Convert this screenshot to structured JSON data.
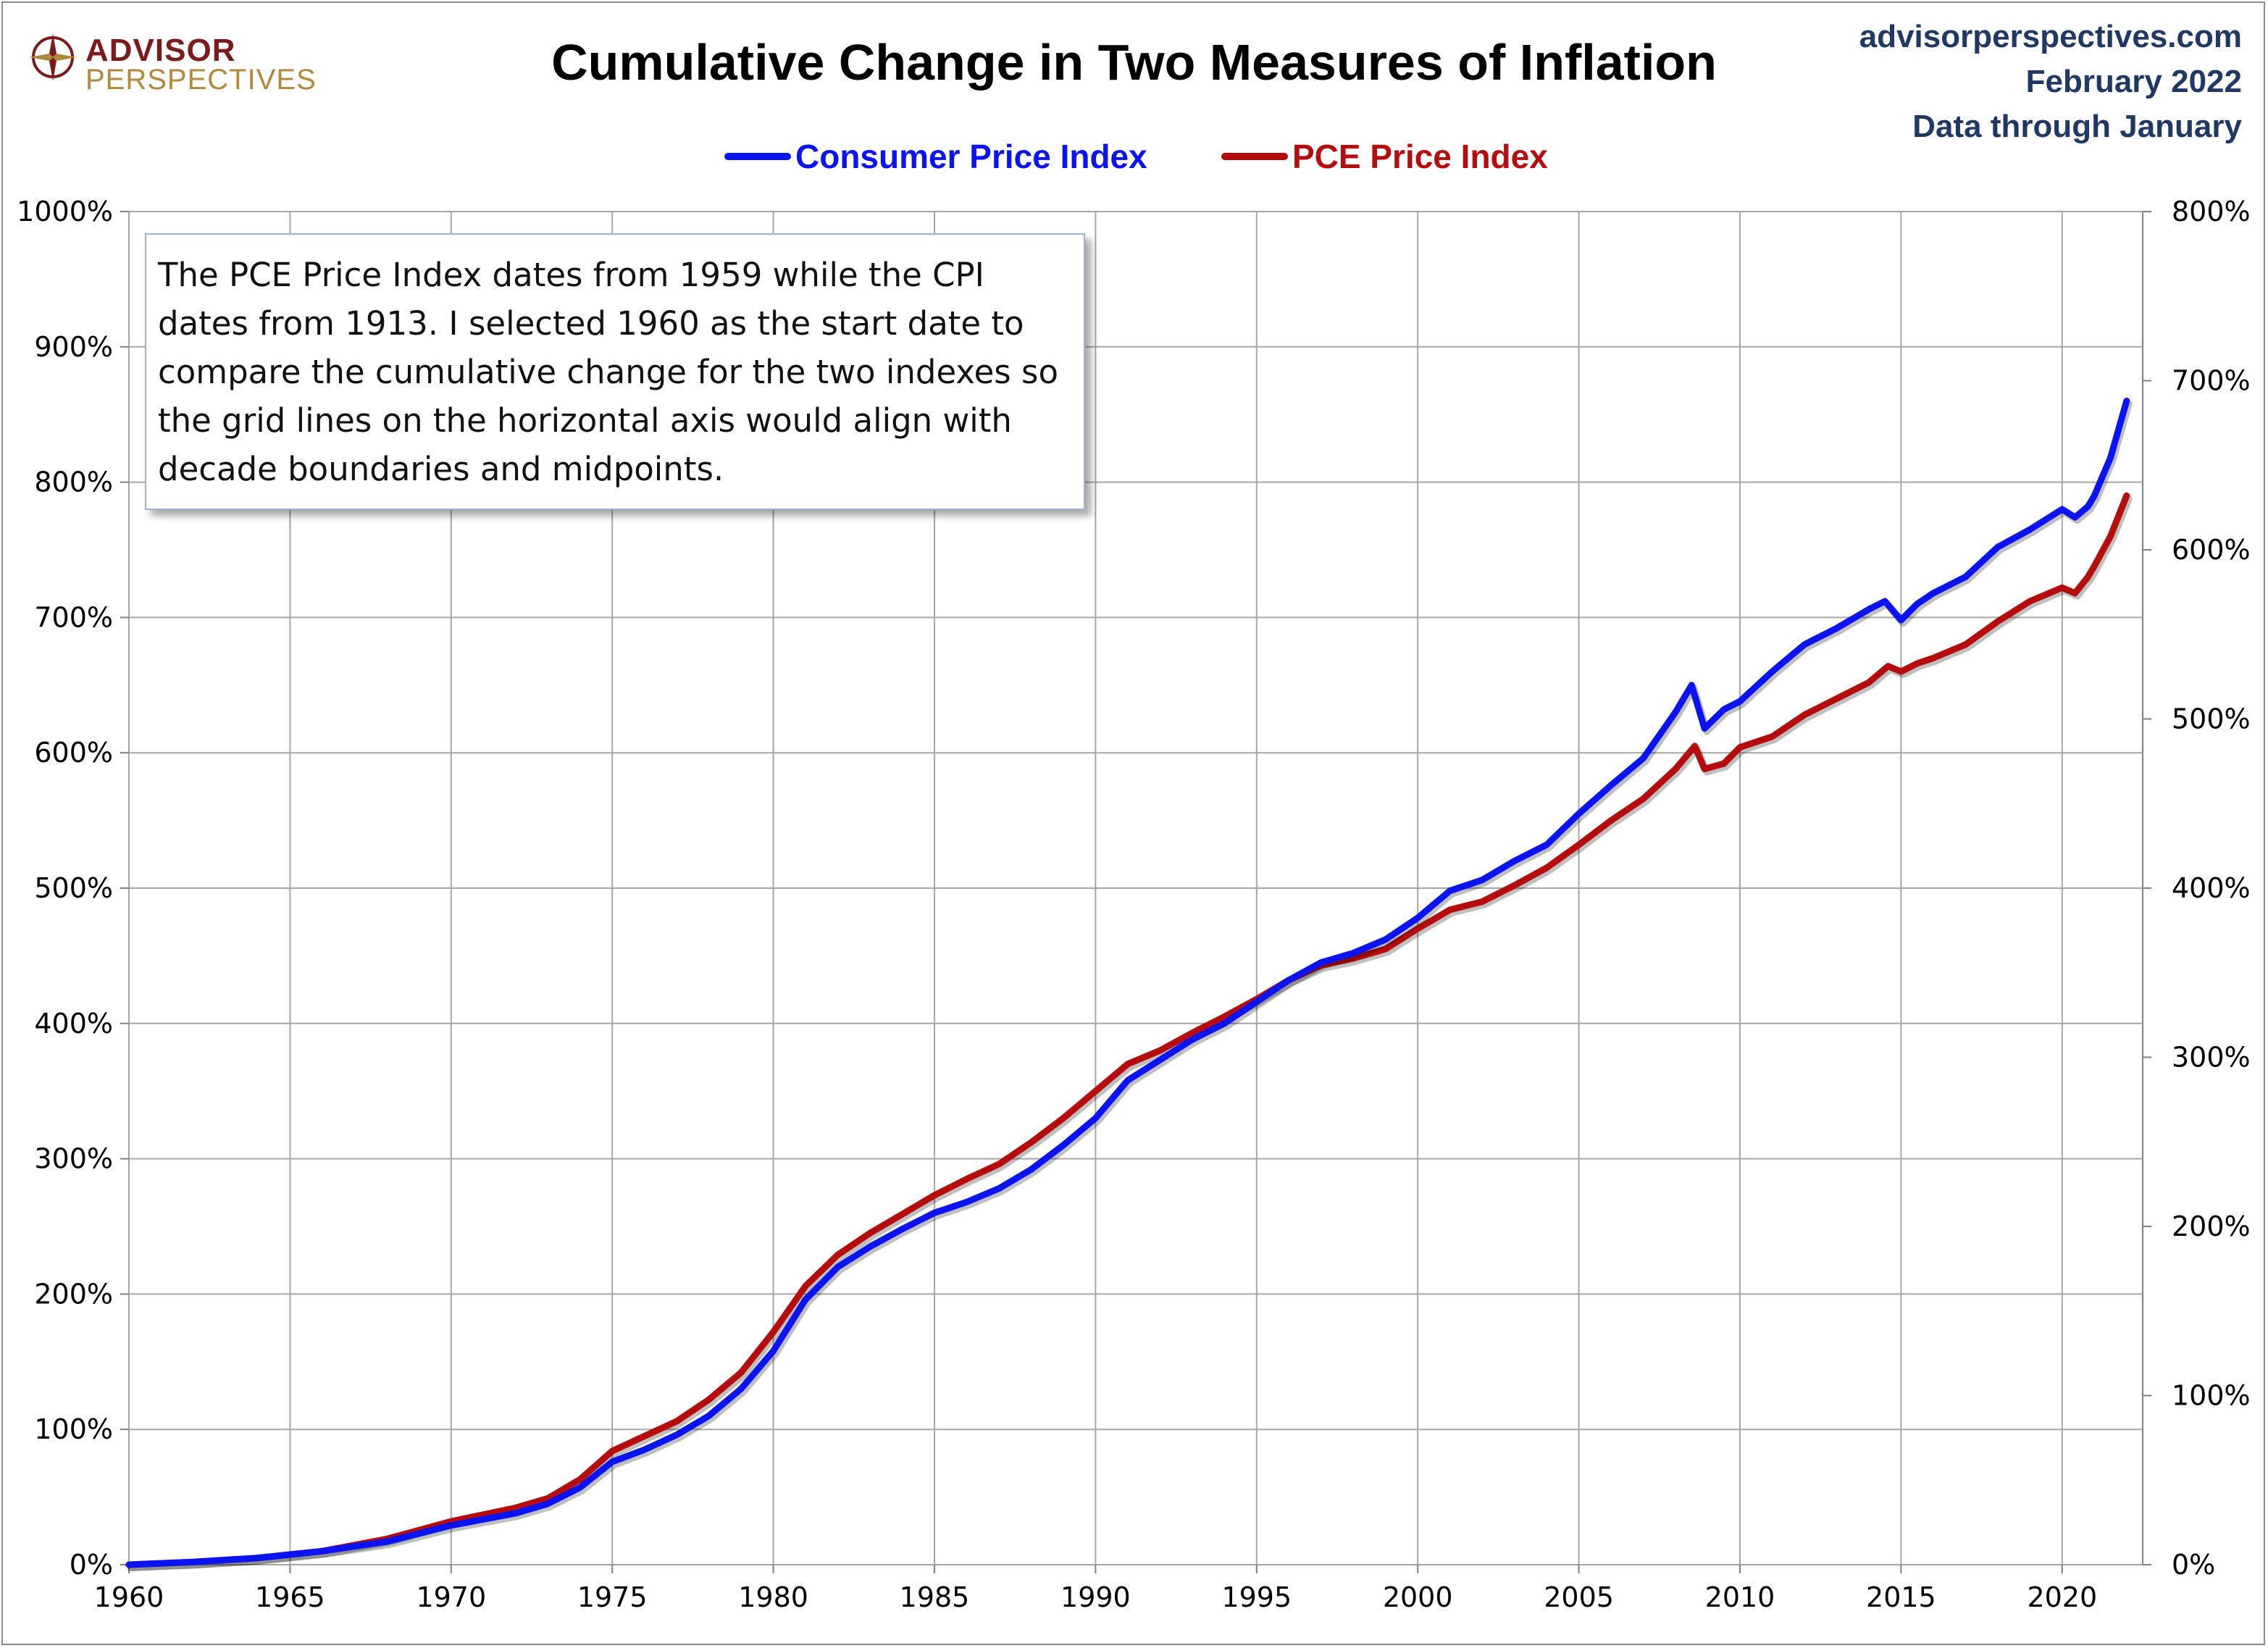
{
  "header": {
    "logo_line1": "ADVISOR",
    "logo_line2": "PERSPECTIVES",
    "source_site": "advisorperspectives.com",
    "source_date": "February 2022",
    "source_note": "Data through January"
  },
  "note": {
    "text": "The PCE Price Index dates from 1959 while the CPI dates from 1913. I selected 1960 as the start date to compare the cumulative change for the two indexes so the grid lines on the horizontal axis would align with decade boundaries and midpoints."
  },
  "colors": {
    "cpi": "#0a14f0",
    "pce": "#b50d0d",
    "grid": "#a6a6a6",
    "axis": "#7f7f7f",
    "source_text": "#1f3864"
  },
  "chart_data": {
    "type": "line",
    "title": "Cumulative Change in Two Measures of Inflation",
    "xlabel": "",
    "ylabel": "",
    "xlim": [
      1960,
      2022.5
    ],
    "ylim_left": [
      0,
      1000
    ],
    "ylim_right": [
      0,
      800
    ],
    "y_unit": "%",
    "grid": true,
    "legend_position": "top-center",
    "x_ticks": [
      "1960",
      "1965",
      "1970",
      "1975",
      "1980",
      "1985",
      "1990",
      "1995",
      "2000",
      "2005",
      "2010",
      "2015",
      "2020"
    ],
    "y_ticks_left": [
      "0%",
      "100%",
      "200%",
      "300%",
      "400%",
      "500%",
      "600%",
      "700%",
      "800%",
      "900%",
      "1000%"
    ],
    "y_ticks_right": [
      "0%",
      "100%",
      "200%",
      "300%",
      "400%",
      "500%",
      "600%",
      "700%",
      "800%"
    ],
    "series": [
      {
        "name": "Consumer Price Index",
        "axis": "left",
        "points": [
          [
            1960,
            0
          ],
          [
            1962,
            2
          ],
          [
            1964,
            5
          ],
          [
            1966,
            10
          ],
          [
            1968,
            17
          ],
          [
            1970,
            29
          ],
          [
            1972,
            38
          ],
          [
            1973,
            45
          ],
          [
            1974,
            57
          ],
          [
            1975,
            76
          ],
          [
            1976,
            85
          ],
          [
            1977,
            96
          ],
          [
            1978,
            110
          ],
          [
            1979,
            130
          ],
          [
            1980,
            158
          ],
          [
            1981,
            196
          ],
          [
            1982,
            220
          ],
          [
            1983,
            235
          ],
          [
            1984,
            248
          ],
          [
            1985,
            260
          ],
          [
            1986,
            268
          ],
          [
            1987,
            278
          ],
          [
            1988,
            292
          ],
          [
            1989,
            310
          ],
          [
            1990,
            330
          ],
          [
            1991,
            358
          ],
          [
            1992,
            373
          ],
          [
            1993,
            388
          ],
          [
            1994,
            400
          ],
          [
            1995,
            416
          ],
          [
            1996,
            432
          ],
          [
            1997,
            445
          ],
          [
            1998,
            452
          ],
          [
            1999,
            462
          ],
          [
            2000,
            478
          ],
          [
            2001,
            498
          ],
          [
            2002,
            506
          ],
          [
            2003,
            520
          ],
          [
            2004,
            532
          ],
          [
            2005,
            555
          ],
          [
            2006,
            576
          ],
          [
            2007,
            596
          ],
          [
            2008,
            630
          ],
          [
            2008.5,
            650
          ],
          [
            2008.9,
            618
          ],
          [
            2009.5,
            632
          ],
          [
            2010,
            638
          ],
          [
            2011,
            660
          ],
          [
            2012,
            680
          ],
          [
            2013,
            692
          ],
          [
            2014,
            706
          ],
          [
            2014.5,
            712
          ],
          [
            2015,
            698
          ],
          [
            2015.5,
            710
          ],
          [
            2016,
            718
          ],
          [
            2017,
            730
          ],
          [
            2018,
            752
          ],
          [
            2019,
            765
          ],
          [
            2020,
            780
          ],
          [
            2020.4,
            774
          ],
          [
            2020.8,
            782
          ],
          [
            2021,
            790
          ],
          [
            2021.5,
            818
          ],
          [
            2022,
            860
          ]
        ]
      },
      {
        "name": "PCE Price Index",
        "axis": "left",
        "points": [
          [
            1960,
            0
          ],
          [
            1962,
            2
          ],
          [
            1964,
            5
          ],
          [
            1966,
            10
          ],
          [
            1968,
            19
          ],
          [
            1970,
            32
          ],
          [
            1972,
            42
          ],
          [
            1973,
            49
          ],
          [
            1974,
            63
          ],
          [
            1975,
            84
          ],
          [
            1976,
            95
          ],
          [
            1977,
            106
          ],
          [
            1978,
            122
          ],
          [
            1979,
            142
          ],
          [
            1980,
            172
          ],
          [
            1981,
            206
          ],
          [
            1982,
            229
          ],
          [
            1983,
            245
          ],
          [
            1984,
            259
          ],
          [
            1985,
            273
          ],
          [
            1986,
            285
          ],
          [
            1987,
            296
          ],
          [
            1988,
            312
          ],
          [
            1989,
            330
          ],
          [
            1990,
            350
          ],
          [
            1991,
            370
          ],
          [
            1992,
            380
          ],
          [
            1993,
            393
          ],
          [
            1994,
            405
          ],
          [
            1995,
            418
          ],
          [
            1996,
            432
          ],
          [
            1997,
            443
          ],
          [
            1998,
            448
          ],
          [
            1999,
            455
          ],
          [
            2000,
            470
          ],
          [
            2001,
            484
          ],
          [
            2002,
            490
          ],
          [
            2003,
            502
          ],
          [
            2004,
            515
          ],
          [
            2005,
            532
          ],
          [
            2006,
            550
          ],
          [
            2007,
            566
          ],
          [
            2008,
            588
          ],
          [
            2008.6,
            605
          ],
          [
            2008.9,
            588
          ],
          [
            2009.5,
            592
          ],
          [
            2010,
            604
          ],
          [
            2011,
            612
          ],
          [
            2012,
            628
          ],
          [
            2013,
            640
          ],
          [
            2014,
            652
          ],
          [
            2014.6,
            664
          ],
          [
            2015,
            660
          ],
          [
            2015.5,
            666
          ],
          [
            2016,
            670
          ],
          [
            2017,
            680
          ],
          [
            2018,
            697
          ],
          [
            2019,
            712
          ],
          [
            2020,
            722
          ],
          [
            2020.4,
            718
          ],
          [
            2020.8,
            730
          ],
          [
            2021,
            738
          ],
          [
            2021.5,
            760
          ],
          [
            2022,
            790
          ]
        ]
      }
    ]
  }
}
